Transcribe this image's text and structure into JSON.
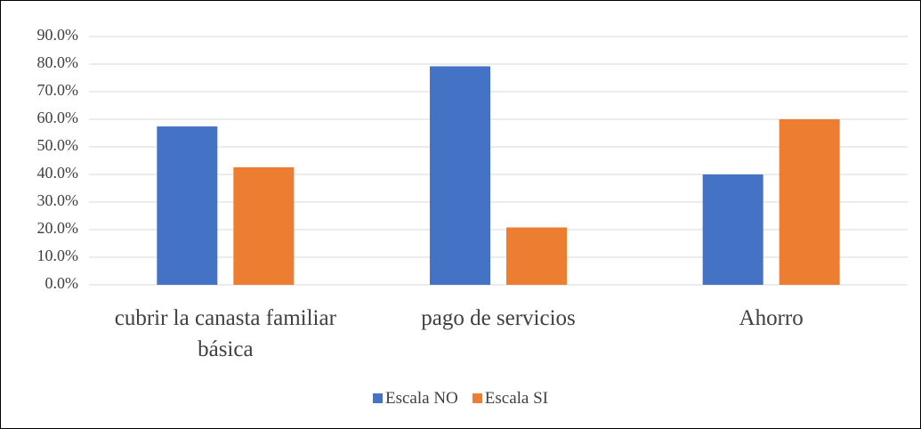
{
  "chart_data": {
    "type": "bar",
    "categories": [
      "cubrir la canasta familiar básica",
      "pago de servicios",
      "Ahorro"
    ],
    "series": [
      {
        "name": "Escala NO",
        "color": "#4472c4",
        "values": [
          57.4,
          79.2,
          40.0
        ]
      },
      {
        "name": "Escala SI",
        "color": "#ed7d31",
        "values": [
          42.6,
          20.8,
          60.0
        ]
      }
    ],
    "ylim": [
      0,
      90
    ],
    "yticks": [
      {
        "value": 0,
        "label": "0.0%"
      },
      {
        "value": 10,
        "label": "10.0%"
      },
      {
        "value": 20,
        "label": "20.0%"
      },
      {
        "value": 30,
        "label": "30.0%"
      },
      {
        "value": 40,
        "label": "40.0%"
      },
      {
        "value": 50,
        "label": "50.0%"
      },
      {
        "value": 60,
        "label": "60.0%"
      },
      {
        "value": 70,
        "label": "70.0%"
      },
      {
        "value": 80,
        "label": "80.0%"
      },
      {
        "value": 90,
        "label": "90.0%"
      }
    ],
    "grid": true,
    "legend": "bottom"
  }
}
